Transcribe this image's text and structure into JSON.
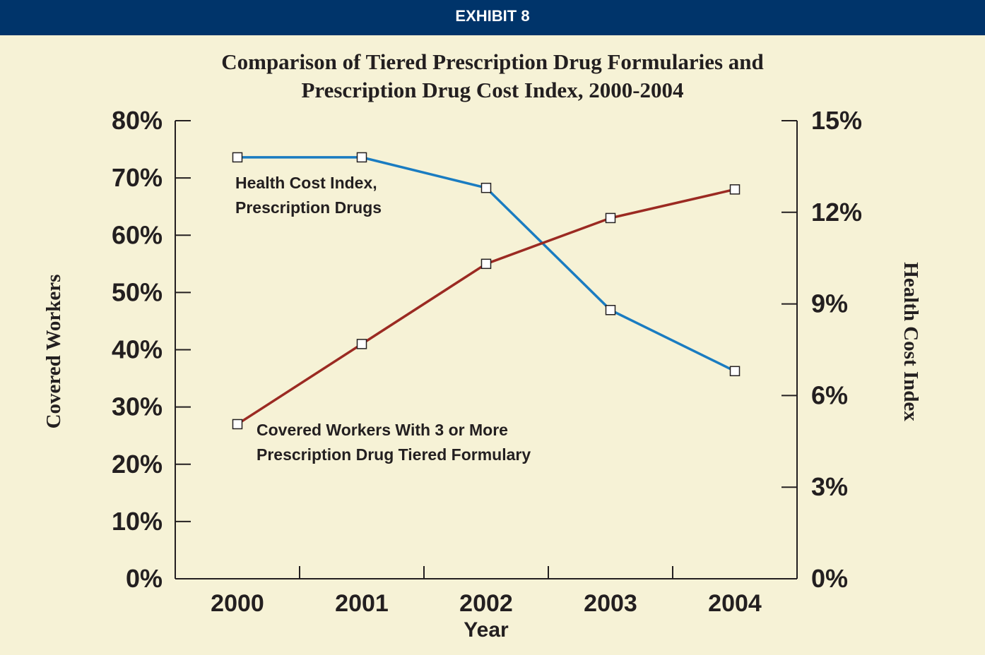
{
  "header": "EXHIBIT 8",
  "chart_data": {
    "type": "line",
    "title": [
      "Comparison of Tiered Prescription Drug Formularies and",
      "Prescription Drug Cost Index, 2000-2004"
    ],
    "x_label": "Year",
    "y_label": "Covered Workers",
    "y2_label": "Health Cost Index",
    "categories": [
      "2000",
      "2001",
      "2002",
      "2003",
      "2004"
    ],
    "ylim": [
      0,
      80
    ],
    "yticks": [
      {
        "value": 0,
        "label": "0%"
      },
      {
        "value": 10,
        "label": "10%"
      },
      {
        "value": 20,
        "label": "20%"
      },
      {
        "value": 30,
        "label": "30%"
      },
      {
        "value": 40,
        "label": "40%"
      },
      {
        "value": 50,
        "label": "50%"
      },
      {
        "value": 60,
        "label": "60%"
      },
      {
        "value": 70,
        "label": "70%"
      },
      {
        "value": 80,
        "label": "80%"
      }
    ],
    "y2lim": [
      0,
      15
    ],
    "y2ticks": [
      {
        "value": 0,
        "label": "0%"
      },
      {
        "value": 3,
        "label": "3%"
      },
      {
        "value": 6,
        "label": "6%"
      },
      {
        "value": 9,
        "label": "9%"
      },
      {
        "value": 12,
        "label": "12%"
      },
      {
        "value": 15,
        "label": "15%"
      }
    ],
    "series": [
      {
        "name": "Health Cost Index, Prescription Drugs",
        "color": "#1a7cc1",
        "axis": "y2",
        "values": [
          13.8,
          13.8,
          12.8,
          8.8,
          6.8
        ]
      },
      {
        "name": "Covered Workers With 3 or More Prescription Drug Tiered Formulary",
        "color": "#9b2a22",
        "values": [
          27,
          41,
          55,
          63,
          68
        ]
      }
    ]
  }
}
